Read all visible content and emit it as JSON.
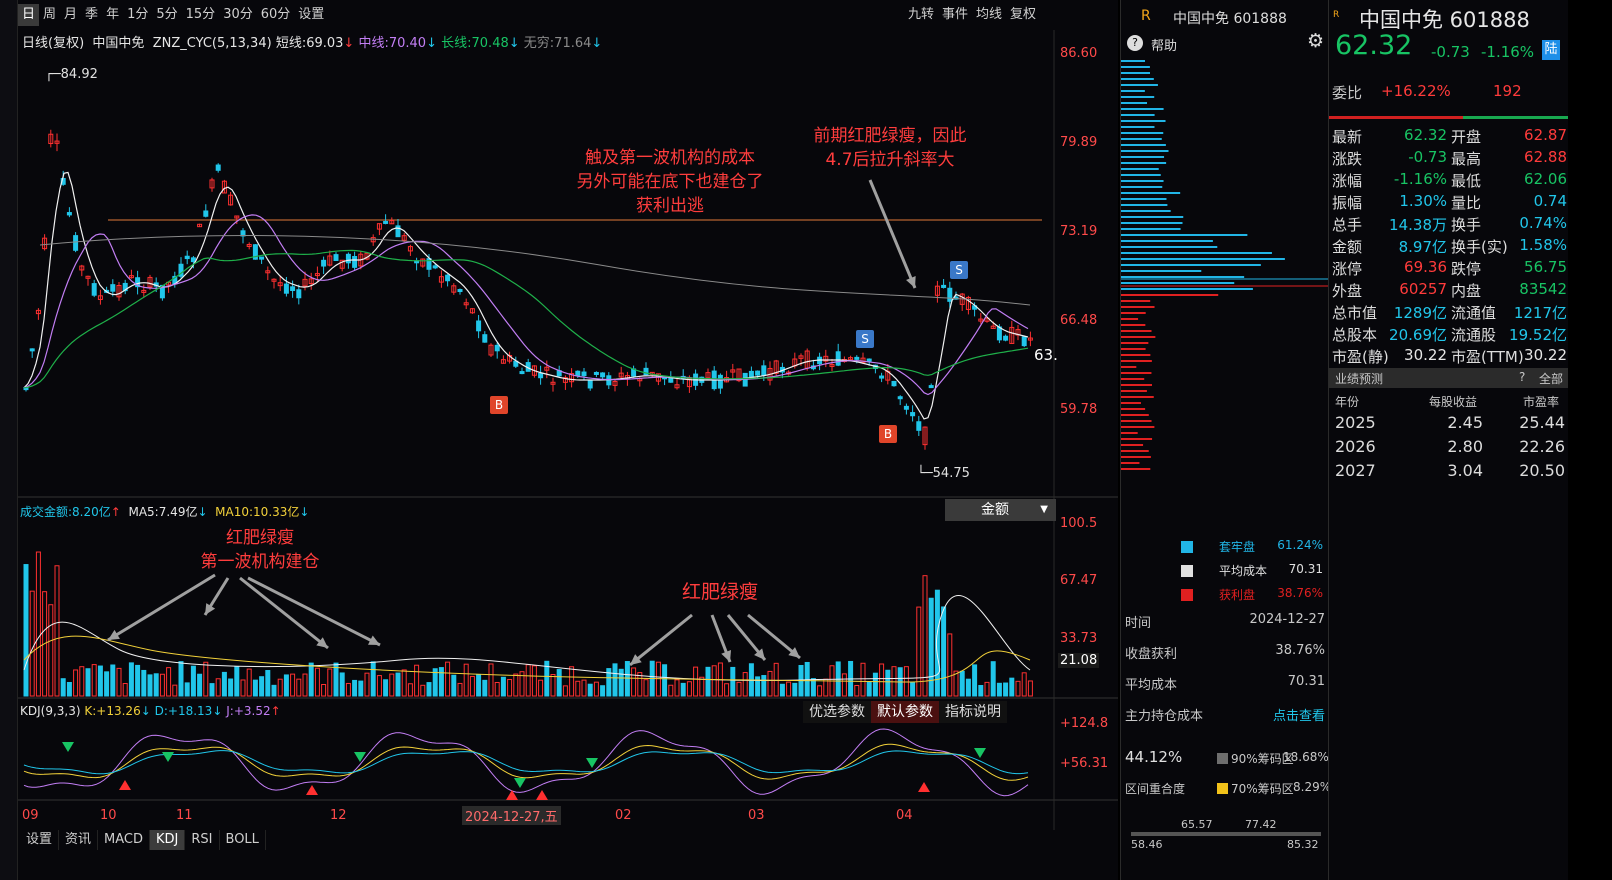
{
  "toolbar": {
    "periods": [
      "日",
      "周",
      "月",
      "季",
      "年",
      "1分",
      "5分",
      "15分",
      "30分",
      "60分",
      "设置"
    ],
    "right_buttons": [
      "九转",
      "事件",
      "均线",
      "复权"
    ]
  },
  "main_chart": {
    "legend_prefix": "日线(复权)",
    "stock": "中国中免",
    "indicator": "ZNZ_CYC(5,13,34)",
    "short_label": "短线:",
    "short_value": "69.03",
    "mid_label": "中线:",
    "mid_value": "70.40",
    "long_label": "长线:",
    "long_value": "70.48",
    "inf_label": "无穷:",
    "inf_value": "71.64",
    "y_ticks": [
      "86.60",
      "79.89",
      "73.19",
      "66.48",
      "59.78"
    ],
    "high_marker": "84.92",
    "low_marker": "54.75",
    "price_tag": "63.",
    "annotation_1": [
      "触及第一波机构的成本",
      "另外可能在底下也建仓了",
      "获利出逃"
    ],
    "annotation_2": [
      "前期红肥绿瘦，因此",
      "4.7后拉升斜率大"
    ],
    "signal_b": "B",
    "signal_s": "S"
  },
  "volume_chart": {
    "label": "成交金额:",
    "value": "8.20亿",
    "ma5_label": "MA5:",
    "ma5_value": "7.49亿",
    "ma10_label": "MA10:",
    "ma10_value": "10.33亿",
    "dropdown": "金额",
    "y_ticks": [
      "100.5",
      "67.47",
      "33.73",
      "21.08"
    ],
    "annotation_1": [
      "红肥绿瘦",
      "第一波机构建仓"
    ],
    "annotation_2": "红肥绿瘦"
  },
  "kdj_chart": {
    "label": "KDJ(9,3,3)",
    "k_label": "K:",
    "k_value": "+13.26",
    "d_label": "D:",
    "d_value": "+18.13",
    "j_label": "J:",
    "j_value": "+3.52",
    "buttons": [
      "优选参数",
      "默认参数",
      "指标说明"
    ],
    "y_ticks": [
      "+124.8",
      "+56.31"
    ]
  },
  "x_axis": {
    "labels": [
      "09",
      "10",
      "11",
      "12",
      "02",
      "03",
      "04"
    ],
    "cursor_date": "2024-12-27,五"
  },
  "bottom_tabs": [
    "设置",
    "资讯",
    "MACD",
    "KDJ",
    "RSI",
    "BOLL"
  ],
  "chip_panel": {
    "badge": "R",
    "title": "中国中免 601888",
    "help": "帮助",
    "legend": [
      {
        "label": "套牢盘",
        "value": "61.24%",
        "color": "#21b5e6"
      },
      {
        "label": "平均成本",
        "value": "70.31",
        "color": "#e0e0e0"
      },
      {
        "label": "获利盘",
        "value": "38.76%",
        "color": "#e02020"
      }
    ],
    "info": [
      {
        "label": "时间",
        "value": "2024-12-27"
      },
      {
        "label": "收盘获利",
        "value": "38.76%"
      },
      {
        "label": "平均成本",
        "value": "70.31"
      },
      {
        "label": "主力持仓成本",
        "value": "点击查看"
      }
    ],
    "concentration": "44.12%",
    "range90_label": "90%筹码区",
    "range90_value": "18.68%",
    "overlap_label": "区间重合度",
    "range70_label": "70%筹码区",
    "range70_value": "8.29%",
    "scale": [
      "58.46",
      "65.57",
      "77.42",
      "85.32"
    ]
  },
  "quote_panel": {
    "name": "中国中免 601888",
    "price": "62.32",
    "change": "-0.73",
    "change_pct": "-1.16%",
    "lu_tag": "陆",
    "wei_label": "委比",
    "wei_value": "+16.22%",
    "wei_count": "192",
    "rows": [
      {
        "l1": "最新",
        "v1": "62.32",
        "c1": "green",
        "l2": "开盘",
        "v2": "62.87",
        "c2": "red"
      },
      {
        "l1": "涨跌",
        "v1": "-0.73",
        "c1": "green",
        "l2": "最高",
        "v2": "62.88",
        "c2": "red"
      },
      {
        "l1": "涨幅",
        "v1": "-1.16%",
        "c1": "green",
        "l2": "最低",
        "v2": "62.06",
        "c2": "green"
      },
      {
        "l1": "振幅",
        "v1": "1.30%",
        "c1": "cyan",
        "l2": "量比",
        "v2": "0.74",
        "c2": "cyan"
      },
      {
        "l1": "总手",
        "v1": "14.38万",
        "c1": "cyan",
        "l2": "换手",
        "v2": "0.74%",
        "c2": "cyan"
      },
      {
        "l1": "金额",
        "v1": "8.97亿",
        "c1": "cyan",
        "l2": "换手(实)",
        "v2": "1.58%",
        "c2": "cyan"
      },
      {
        "l1": "涨停",
        "v1": "69.36",
        "c1": "red",
        "l2": "跌停",
        "v2": "56.75",
        "c2": "green"
      },
      {
        "l1": "外盘",
        "v1": "60257",
        "c1": "red",
        "l2": "内盘",
        "v2": "83542",
        "c2": "green"
      },
      {
        "l1": "总市值",
        "v1": "1289亿",
        "c1": "cyan",
        "l2": "流通值",
        "v2": "1217亿",
        "c2": "cyan"
      },
      {
        "l1": "总股本",
        "v1": "20.69亿",
        "c1": "cyan",
        "l2": "流通股",
        "v2": "19.52亿",
        "c2": "cyan"
      },
      {
        "l1": "市盈(静)",
        "v1": "30.22",
        "c1": "white",
        "l2": "市盈(TTM)",
        "v2": "30.22",
        "c2": "white"
      }
    ],
    "forecast_title": "业绩预测",
    "forecast_q": "?",
    "forecast_all": "全部",
    "forecast_headers": [
      "年份",
      "每股收益",
      "市盈率"
    ],
    "forecast_rows": [
      [
        "2025",
        "2.45",
        "25.44"
      ],
      [
        "2026",
        "2.80",
        "22.26"
      ],
      [
        "2027",
        "3.04",
        "20.50"
      ]
    ]
  }
}
